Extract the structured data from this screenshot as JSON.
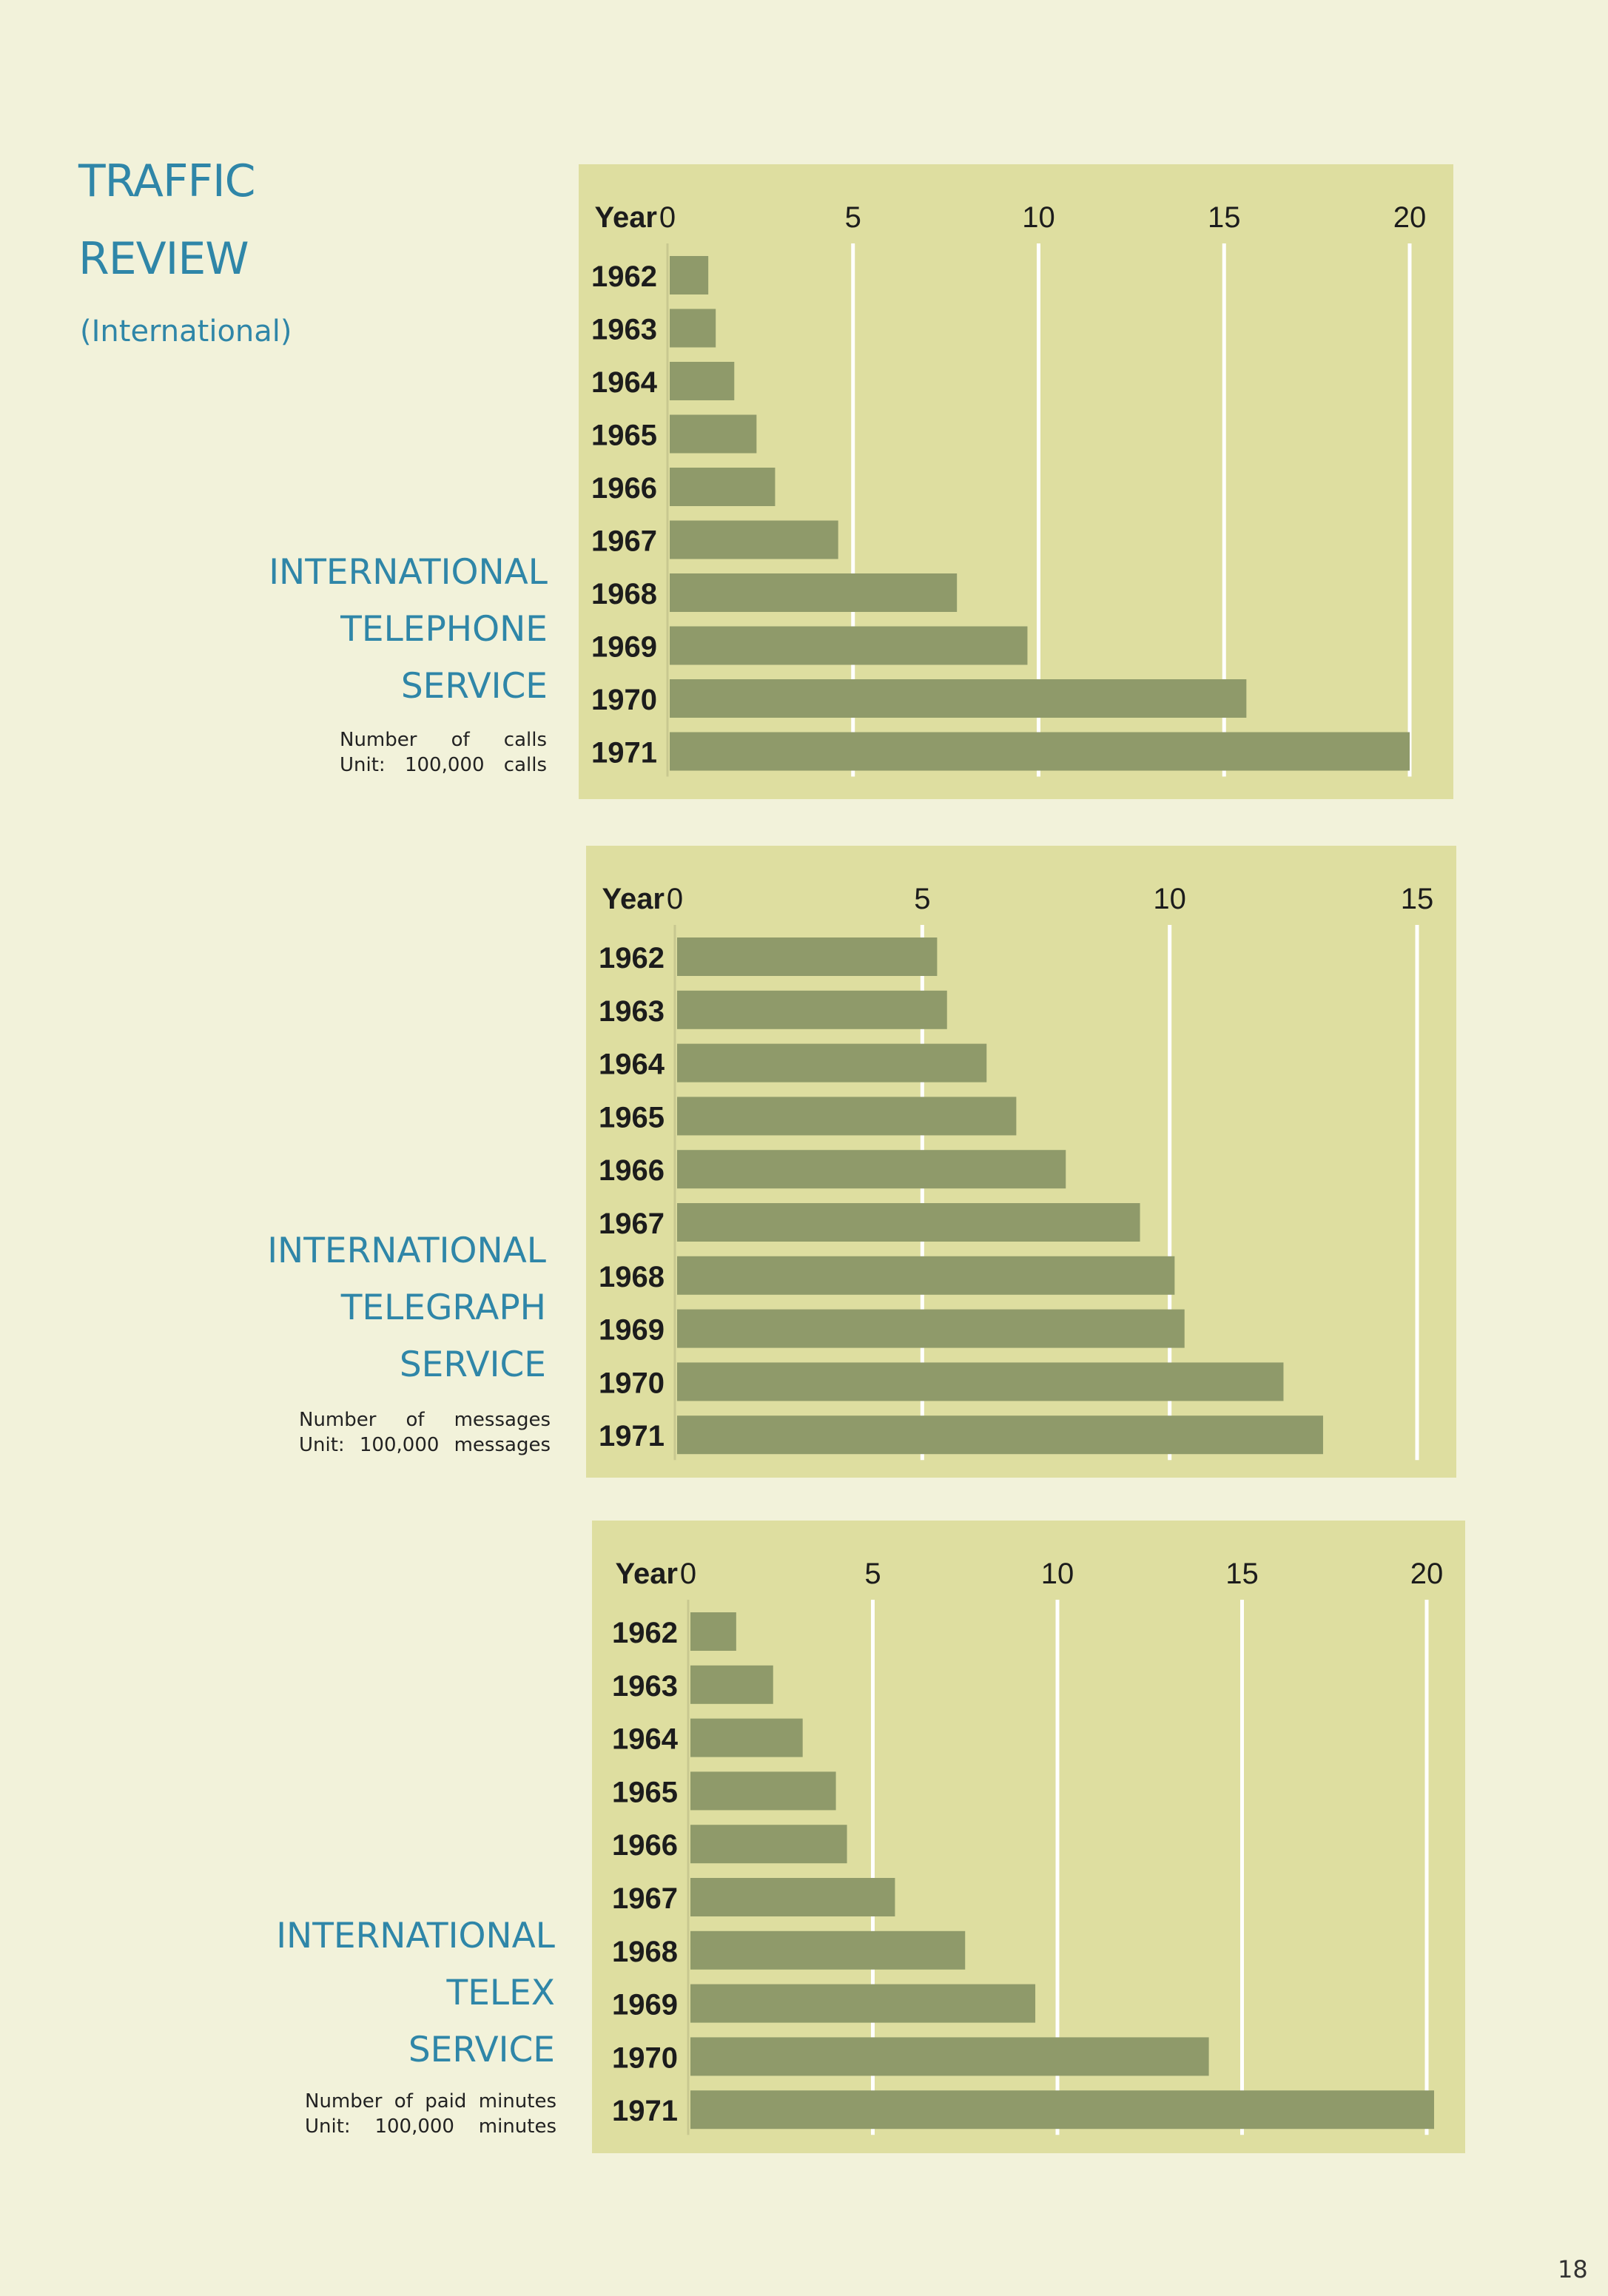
{
  "header": {
    "title_line1": "TRAFFIC",
    "title_line2": "REVIEW",
    "subtitle": "(International)"
  },
  "services": [
    {
      "line1": "INTERNATIONAL",
      "line2": "TELEPHONE",
      "line3": "SERVICE",
      "note_label": "Number of calls",
      "note_unit": "Unit: 100,000 calls"
    },
    {
      "line1": "INTERNATIONAL",
      "line2": "TELEGRAPH",
      "line3": "SERVICE",
      "note_label": "Number of messages",
      "note_unit": "Unit: 100,000 messages"
    },
    {
      "line1": "INTERNATIONAL",
      "line2": "TELEX",
      "line3": "SERVICE",
      "note_label": "Number of paid minutes",
      "note_unit": "Unit: 100,000 minutes"
    }
  ],
  "colors": {
    "panel": "#dedea0",
    "bar": "#8f9a6a",
    "accent": "#2f86a8",
    "grid": "#ffffff"
  },
  "chart_data": [
    {
      "type": "bar",
      "orientation": "horizontal",
      "title": "INTERNATIONAL TELEPHONE SERVICE",
      "ylabel": "Year",
      "xlabel": "Number of calls (Unit: 100,000 calls)",
      "categories": [
        "1962",
        "1963",
        "1964",
        "1965",
        "1966",
        "1967",
        "1968",
        "1969",
        "1970",
        "1971"
      ],
      "values": [
        1.1,
        1.3,
        1.8,
        2.4,
        2.9,
        4.6,
        7.8,
        9.7,
        15.6,
        20.0
      ],
      "xlim": [
        0,
        20
      ],
      "ticks": [
        "0",
        "5",
        "10",
        "15",
        "20"
      ],
      "grid": true
    },
    {
      "type": "bar",
      "orientation": "horizontal",
      "title": "INTERNATIONAL TELEGRAPH SERVICE",
      "ylabel": "Year",
      "xlabel": "Number of messages (Unit: 100,000 messages)",
      "categories": [
        "1962",
        "1963",
        "1964",
        "1965",
        "1966",
        "1967",
        "1968",
        "1969",
        "1970",
        "1971"
      ],
      "values": [
        5.3,
        5.5,
        6.3,
        6.9,
        7.9,
        9.4,
        10.1,
        10.3,
        12.3,
        13.1
      ],
      "xlim": [
        0,
        15
      ],
      "ticks": [
        "0",
        "5",
        "10",
        "15"
      ],
      "grid": true
    },
    {
      "type": "bar",
      "orientation": "horizontal",
      "title": "INTERNATIONAL TELEX SERVICE",
      "ylabel": "Year",
      "xlabel": "Number of paid minutes (Unit: 100,000 minutes)",
      "categories": [
        "1962",
        "1963",
        "1964",
        "1965",
        "1966",
        "1967",
        "1968",
        "1969",
        "1970",
        "1971"
      ],
      "values": [
        1.3,
        2.3,
        3.1,
        4.0,
        4.3,
        5.6,
        7.5,
        9.4,
        14.1,
        20.2
      ],
      "xlim": [
        0,
        20
      ],
      "ticks": [
        "0",
        "5",
        "10",
        "15",
        "20"
      ],
      "grid": true
    }
  ],
  "page_number": "18"
}
